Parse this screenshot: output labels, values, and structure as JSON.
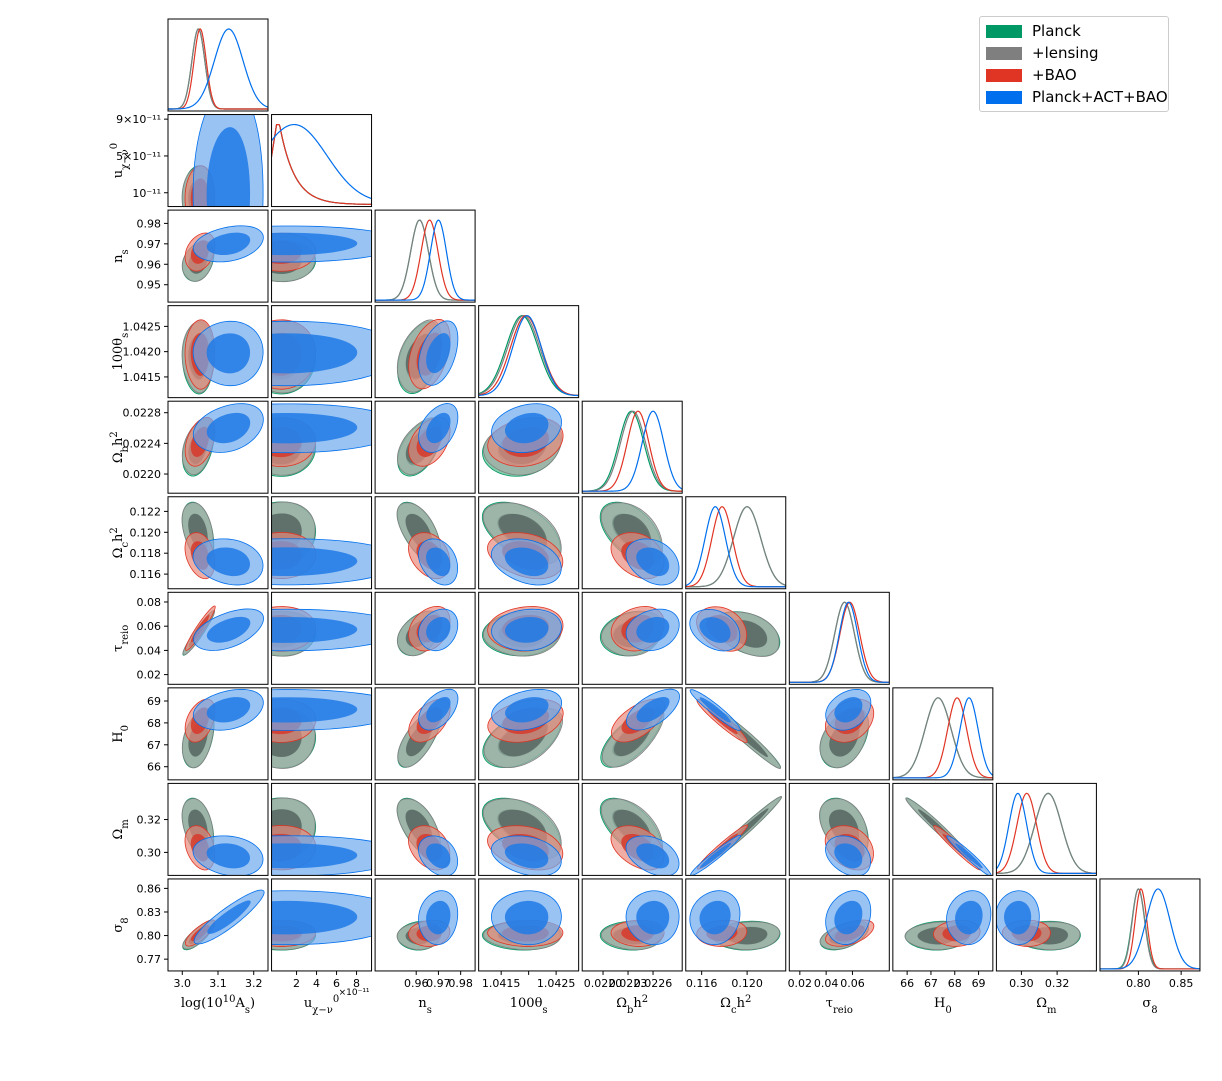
{
  "chart_data": {
    "type": "corner-triangle",
    "title": "",
    "series": [
      {
        "name": "Planck",
        "color": "#009966",
        "darkcolor": "#1b6e4d",
        "fill": "#4fb584"
      },
      {
        "name": "+lensing",
        "color": "#7f7f7f",
        "darkcolor": "#5a6a64",
        "fill": "#a6aba8"
      },
      {
        "name": "+BAO",
        "color": "#e03424",
        "darkcolor": "#d63a2a",
        "fill": "#e88a7c"
      },
      {
        "name": "Planck+ACT+BAO",
        "color": "#006fed",
        "darkcolor": "#1e7ae6",
        "fill": "#6ea9ee"
      }
    ],
    "parameters": [
      {
        "name": "log(10^10 A_s)",
        "label_parts": [
          [
            "log(10",
            ""
          ],
          [
            "10",
            "sup"
          ],
          [
            "A",
            ""
          ],
          [
            "s",
            "sub"
          ],
          [
            ")",
            ""
          ]
        ],
        "range": [
          2.96,
          3.24
        ],
        "ticks": [
          3.0,
          3.1,
          3.2
        ],
        "tick_labels": [
          "3.0",
          "3.1",
          "3.2"
        ],
        "means": [
          3.045,
          3.045,
          3.05,
          3.13
        ],
        "sigmas": [
          0.018,
          0.018,
          0.017,
          0.04
        ]
      },
      {
        "name": "u0_chi-nu",
        "label_parts": [
          [
            "u",
            ""
          ],
          [
            "χ−ν",
            "sub"
          ],
          [
            "0",
            "sup"
          ]
        ],
        "range": [
          -5e-12,
          9.5e-11
        ],
        "ticks": [
          2e-11,
          4e-11,
          6e-11,
          8e-11
        ],
        "tick_labels": [
          "2",
          "4",
          "6",
          "8"
        ],
        "ytick_labels": [
          "10⁻¹¹",
          "5×10⁻¹¹",
          "9×10⁻¹¹"
        ],
        "ytick_values": [
          1e-11,
          5e-11,
          9e-11
        ],
        "multiplier": "×10⁻¹¹",
        "means": [
          3e-12,
          3e-12,
          3e-12,
          6e-12
        ],
        "sigmas": [
          1.5e-11,
          1.5e-11,
          1.5e-11,
          5e-11
        ]
      },
      {
        "name": "n_s",
        "label_parts": [
          [
            "n",
            ""
          ],
          [
            "s",
            "sub"
          ]
        ],
        "range": [
          0.9415,
          0.9865
        ],
        "ticks": [
          0.96,
          0.97,
          0.98
        ],
        "tick_labels": [
          "0.96",
          "0.97",
          "0.98"
        ],
        "yticks": [
          0.95,
          0.96,
          0.97,
          0.98
        ],
        "ytick_labels": [
          "0.95",
          "0.96",
          "0.97",
          "0.98"
        ],
        "means": [
          0.9615,
          0.9615,
          0.966,
          0.97
        ],
        "sigmas": [
          0.004,
          0.004,
          0.0038,
          0.0036
        ]
      },
      {
        "name": "100 theta_s",
        "label_parts": [
          [
            "100θ",
            ""
          ],
          [
            "s",
            "sub"
          ]
        ],
        "range": [
          1.04109,
          1.04291
        ],
        "ticks": [
          1.0415,
          1.042,
          1.0425
        ],
        "tick_labels": [
          "1.0415",
          "",
          "1.0425"
        ],
        "ytick_labels": [
          "1.0415",
          "1.0420",
          "1.0425"
        ],
        "means": [
          1.04188,
          1.04191,
          1.04195,
          1.04197
        ],
        "sigmas": [
          0.00029,
          0.00029,
          0.00028,
          0.00026
        ]
      },
      {
        "name": "Omega_b h^2",
        "label_parts": [
          [
            "Ω",
            ""
          ],
          [
            "b",
            "sub"
          ],
          [
            "h",
            ""
          ],
          [
            "2",
            "sup"
          ]
        ],
        "range": [
          0.02175,
          0.02295
        ],
        "ticks": [
          0.022,
          0.0223,
          0.0226
        ],
        "tick_labels": [
          "0.0220",
          "0.0223",
          "0.0226"
        ],
        "yticks": [
          0.022,
          0.0224,
          0.0228
        ],
        "ytick_labels": [
          "0.0220",
          "0.0224",
          "0.0228"
        ],
        "means": [
          0.02234,
          0.02236,
          0.02242,
          0.0226
        ],
        "sigmas": [
          0.00015,
          0.00015,
          0.00013,
          0.00013
        ]
      },
      {
        "name": "Omega_c h^2",
        "label_parts": [
          [
            "Ω",
            ""
          ],
          [
            "c",
            "sub"
          ],
          [
            "h",
            ""
          ],
          [
            "2",
            "sup"
          ]
        ],
        "range": [
          0.1146,
          0.1234
        ],
        "ticks": [
          0.116,
          0.12
        ],
        "tick_labels": [
          "0.116",
          "0.120"
        ],
        "yticks": [
          0.116,
          0.118,
          0.12,
          0.122
        ],
        "ytick_labels": [
          "0.116",
          "0.118",
          "0.120",
          "0.122"
        ],
        "means": [
          0.12,
          0.12,
          0.1178,
          0.1172
        ],
        "sigmas": [
          0.0012,
          0.0012,
          0.0009,
          0.0009
        ]
      },
      {
        "name": "tau_reio",
        "label_parts": [
          [
            "τ",
            ""
          ],
          [
            "reio",
            "sub"
          ]
        ],
        "range": [
          0.012,
          0.088
        ],
        "ticks": [
          0.02,
          0.04,
          0.06
        ],
        "tick_labels": [
          "0.02",
          "0.04",
          "0.06"
        ],
        "yticks": [
          0.02,
          0.04,
          0.06,
          0.08
        ],
        "ytick_labels": [
          "0.02",
          "0.04",
          "0.06",
          "0.08"
        ],
        "means": [
          0.054,
          0.054,
          0.058,
          0.057
        ],
        "sigmas": [
          0.0075,
          0.0075,
          0.0075,
          0.007
        ]
      },
      {
        "name": "H_0",
        "label_parts": [
          [
            "H",
            ""
          ],
          [
            "0",
            "sub"
          ]
        ],
        "range": [
          65.4,
          69.6
        ],
        "ticks": [
          66,
          67,
          68,
          69
        ],
        "tick_labels": [
          "66",
          "67",
          "68",
          "69"
        ],
        "means": [
          67.3,
          67.3,
          68.1,
          68.6
        ],
        "sigmas": [
          0.55,
          0.55,
          0.4,
          0.38
        ]
      },
      {
        "name": "Omega_m",
        "label_parts": [
          [
            "Ω",
            ""
          ],
          [
            "m",
            "sub"
          ]
        ],
        "range": [
          0.286,
          0.342
        ],
        "ticks": [
          0.3,
          0.32
        ],
        "tick_labels": [
          "0.30",
          "0.32"
        ],
        "yticks": [
          0.3,
          0.32
        ],
        "ytick_labels": [
          "0.30",
          "0.32"
        ],
        "means": [
          0.315,
          0.315,
          0.303,
          0.298
        ],
        "sigmas": [
          0.0075,
          0.0075,
          0.0055,
          0.005
        ]
      },
      {
        "name": "sigma_8",
        "label_parts": [
          [
            "σ",
            ""
          ],
          [
            "8",
            "sub"
          ]
        ],
        "range": [
          0.755,
          0.872
        ],
        "ticks": [
          0.8,
          0.85
        ],
        "tick_labels": [
          "0.80",
          "0.85"
        ],
        "yticks": [
          0.77,
          0.8,
          0.83,
          0.86
        ],
        "ytick_labels": [
          "0.77",
          "0.80",
          "0.83",
          "0.86"
        ],
        "means": [
          0.8,
          0.8,
          0.803,
          0.823
        ],
        "sigmas": [
          0.0075,
          0.0072,
          0.0068,
          0.014
        ]
      }
    ],
    "correlations": {
      "0-2": [
        0.3,
        0.3,
        0.3,
        0.3
      ],
      "0-3": [
        0,
        0,
        0,
        0
      ],
      "0-4": [
        0.4,
        0.4,
        0.4,
        0.3
      ],
      "0-5": [
        -0.4,
        -0.4,
        -0.3,
        -0.2
      ],
      "0-6": [
        0.95,
        0.95,
        0.95,
        0.5
      ],
      "0-7": [
        0.4,
        0.4,
        0.4,
        0.3
      ],
      "0-8": [
        -0.4,
        -0.4,
        -0.3,
        -0.2
      ],
      "0-9": [
        0.8,
        0.8,
        0.8,
        0.9
      ],
      "2-3": [
        0.4,
        0.4,
        0.4,
        0.4
      ],
      "2-4": [
        0.5,
        0.5,
        0.4,
        0.4
      ],
      "2-5": [
        -0.6,
        -0.6,
        -0.3,
        -0.3
      ],
      "2-6": [
        0.4,
        0.4,
        0.3,
        0.2
      ],
      "2-7": [
        0.7,
        0.7,
        0.5,
        0.5
      ],
      "2-8": [
        -0.6,
        -0.6,
        -0.3,
        -0.3
      ],
      "2-9": [
        0.1,
        0.1,
        0.1,
        0.1
      ],
      "3-4": [
        0.2,
        0.2,
        0.2,
        0.2
      ],
      "3-5": [
        -0.5,
        -0.5,
        -0.3,
        -0.3
      ],
      "3-6": [
        0.1,
        0.1,
        0.1,
        0.1
      ],
      "3-7": [
        0.5,
        0.5,
        0.3,
        0.3
      ],
      "3-8": [
        -0.5,
        -0.5,
        -0.3,
        -0.3
      ],
      "3-9": [
        0.0,
        0.0,
        0.0,
        0.0
      ],
      "4-5": [
        -0.5,
        -0.5,
        -0.3,
        -0.3
      ],
      "4-6": [
        0.2,
        0.2,
        0.2,
        0.2
      ],
      "4-7": [
        0.7,
        0.7,
        0.6,
        0.6
      ],
      "4-8": [
        -0.6,
        -0.6,
        -0.4,
        -0.4
      ],
      "4-9": [
        0.0,
        0.0,
        0.0,
        0.0
      ],
      "5-6": [
        -0.4,
        -0.4,
        -0.3,
        -0.3
      ],
      "5-7": [
        -0.97,
        -0.97,
        -0.95,
        -0.95
      ],
      "5-8": [
        0.98,
        0.98,
        0.97,
        0.97
      ],
      "5-9": [
        0.1,
        0.1,
        0.1,
        0.1
      ],
      "6-7": [
        0.4,
        0.4,
        0.3,
        0.3
      ],
      "6-8": [
        -0.4,
        -0.4,
        -0.3,
        -0.3
      ],
      "6-9": [
        0.5,
        0.5,
        0.5,
        0.2
      ],
      "7-8": [
        -0.98,
        -0.98,
        -0.97,
        -0.97
      ],
      "7-9": [
        0.1,
        0.1,
        0.1,
        0.1
      ],
      "8-9": [
        0.0,
        0.0,
        0.0,
        0.0
      ]
    },
    "legend_position": "top-right"
  },
  "legend": {
    "items": [
      {
        "label": "Planck",
        "color": "#009966"
      },
      {
        "label": "+lensing",
        "color": "#7f7f7f"
      },
      {
        "label": "+BAO",
        "color": "#e03424"
      },
      {
        "label": "Planck+ACT+BAO",
        "color": "#006fed"
      }
    ]
  }
}
